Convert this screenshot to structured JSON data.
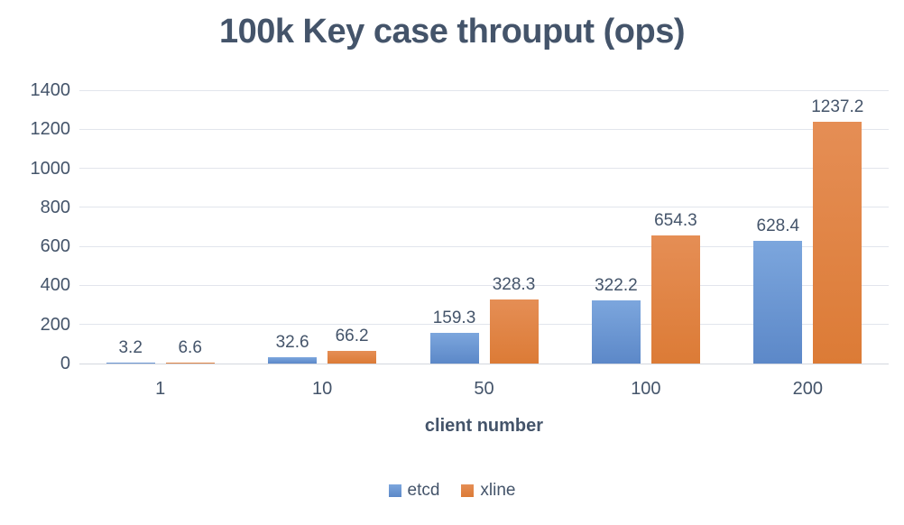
{
  "chart_data": {
    "type": "bar",
    "title": "100k Key case throuput (ops)",
    "xlabel": "client number",
    "ylabel": "",
    "categories": [
      "1",
      "10",
      "50",
      "100",
      "200"
    ],
    "series": [
      {
        "name": "etcd",
        "values": [
          3.2,
          32.6,
          159.3,
          322.2,
          628.4
        ],
        "labels": [
          "3.2",
          "32.6",
          "159.3",
          "322.2",
          "628.4"
        ],
        "color_top": "#7CA6DD",
        "color_bottom": "#5C88C8"
      },
      {
        "name": "xline",
        "values": [
          6.6,
          66.2,
          328.3,
          654.3,
          1237.2
        ],
        "labels": [
          "6.6",
          "66.2",
          "328.3",
          "654.3",
          "1237.2"
        ],
        "color_top": "#E58E55",
        "color_bottom": "#DC7B36"
      }
    ],
    "ylim": [
      0,
      1400
    ],
    "yticks": [
      0,
      200,
      400,
      600,
      800,
      1000,
      1200,
      1400
    ],
    "grid": true,
    "legend_position": "bottom",
    "data_labels": true
  },
  "colors": {
    "text": "#44546A",
    "gridline": "#E2E5EC",
    "axisline": "#D3D7DF",
    "background": "#FFFFFF"
  }
}
